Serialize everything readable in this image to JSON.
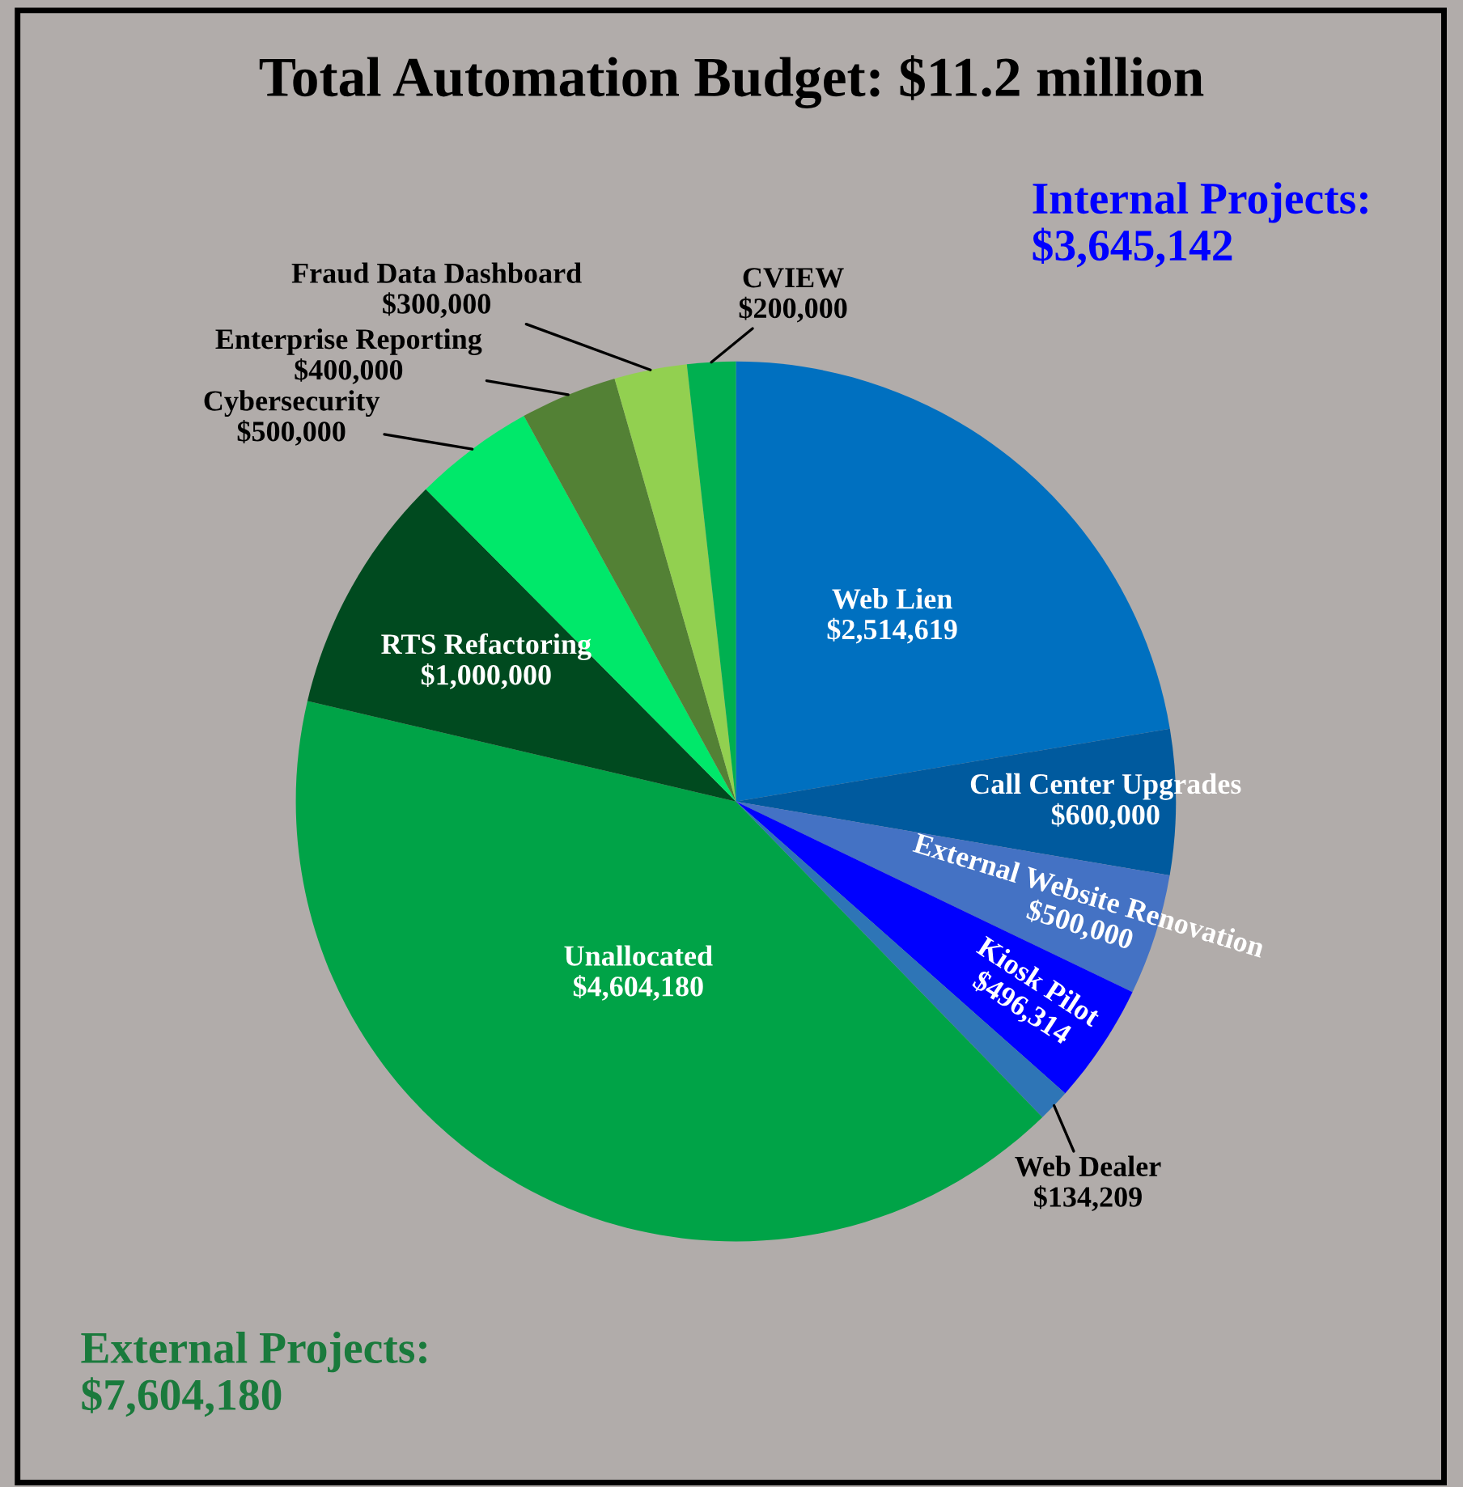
{
  "chart_data": {
    "type": "pie",
    "title": "Total Automation Budget: $11.2 million",
    "categories": [
      "Web Lien",
      "Call Center Upgrades",
      "External Website Renovation",
      "Kiosk Pilot",
      "Web Dealer",
      "Unallocated",
      "RTS Refactoring",
      "Cybersecurity",
      "Enterprise Reporting",
      "Fraud Data Dashboard",
      "CVIEW"
    ],
    "values": [
      2514619,
      600000,
      500000,
      496314,
      134209,
      4604180,
      1000000,
      500000,
      400000,
      300000,
      200000
    ],
    "value_labels": [
      "$2,514,619",
      "$600,000",
      "$500,000",
      "$496,314",
      "$134,209",
      "$4,604,180",
      "$1,000,000",
      "$500,000",
      "$400,000",
      "$300,000",
      "$200,000"
    ],
    "colors": [
      "#0070c0",
      "#005a9e",
      "#4472c4",
      "#0000ff",
      "#2e75b6",
      "#00a347",
      "#004a1f",
      "#00e86a",
      "#538135",
      "#92d050",
      "#00b050"
    ],
    "annotations": [
      "Internal Projects:\n$3,645,142",
      "External Projects:\n$7,604,180"
    ],
    "legend": false
  }
}
